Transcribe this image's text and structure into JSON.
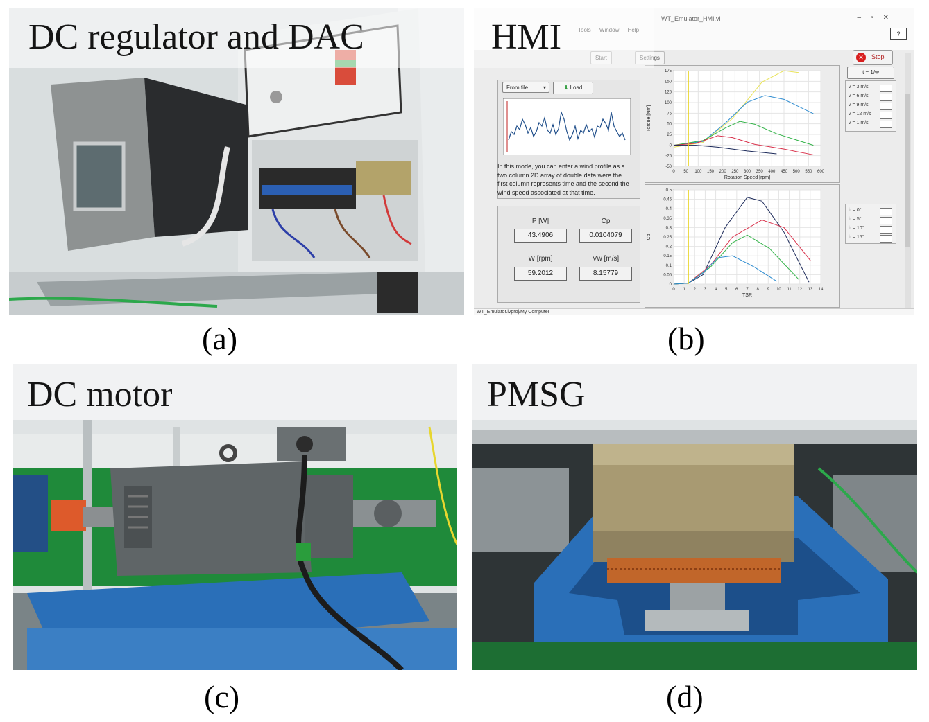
{
  "panels": {
    "a": {
      "title": "DC regulator and DAC",
      "caption": "(a)"
    },
    "b": {
      "title": "HMI",
      "caption": "(b)"
    },
    "c": {
      "title": "DC motor",
      "caption": "(c)"
    },
    "d": {
      "title": "PMSG",
      "caption": "(d)"
    }
  },
  "hmi": {
    "window_title": "WT_Emulator_HMI.vi",
    "menu": "Tools Window Help",
    "tabs": [
      "Start",
      "Settings"
    ],
    "stop_label": "Stop",
    "mode_select": "From file",
    "load_button": "Load",
    "description": "In this mode, you can enter a wind profile as a two column 2D array of double data were the first column represents time and the second the wind speed associated at that time.",
    "indicators": [
      {
        "label": "P [W]",
        "value": "43.4906"
      },
      {
        "label": "Cp",
        "value": "0.0104079"
      },
      {
        "label": "W [rpm]",
        "value": "59.2012"
      },
      {
        "label": "Vw [m/s]",
        "value": "8.15779"
      }
    ],
    "legend_torque_header": "t = 1/w",
    "legend_torque": [
      "v = 3 m/s",
      "v = 6 m/s",
      "v = 9 m/s",
      "v = 12 m/s",
      "v = 1 m/s"
    ],
    "legend_cp": [
      "b = 0°",
      "b = 5°",
      "b = 10°",
      "b = 15°"
    ],
    "torque_chart": {
      "xlabel": "Rotation Speed [rpm]",
      "ylabel": "Torque [Nm]",
      "xticks": [
        "0",
        "50",
        "100",
        "150",
        "200",
        "250",
        "300",
        "350",
        "400",
        "450",
        "500",
        "550",
        "600"
      ],
      "yticks": [
        "175",
        "150",
        "125",
        "100",
        "75",
        "50",
        "25",
        "0",
        "-25",
        "-50"
      ]
    },
    "cp_chart": {
      "xlabel": "TSR",
      "ylabel": "Cp",
      "xticks": [
        "0",
        "1",
        "2",
        "3",
        "4",
        "5",
        "6",
        "7",
        "8",
        "9",
        "10",
        "11",
        "12",
        "13",
        "14"
      ],
      "yticks": [
        "0.5",
        "0.45",
        "0.4",
        "0.35",
        "0.3",
        "0.25",
        "0.2",
        "0.15",
        "0.1",
        "0.05",
        "0"
      ]
    },
    "status": "WT_Emulator.lvproj/My Computer"
  },
  "colors": {
    "cabinet_grey": "#8e9292",
    "blue_frame": "#2a6fb8",
    "green_wall": "#1f8a3a",
    "copper": "#c1662a"
  }
}
